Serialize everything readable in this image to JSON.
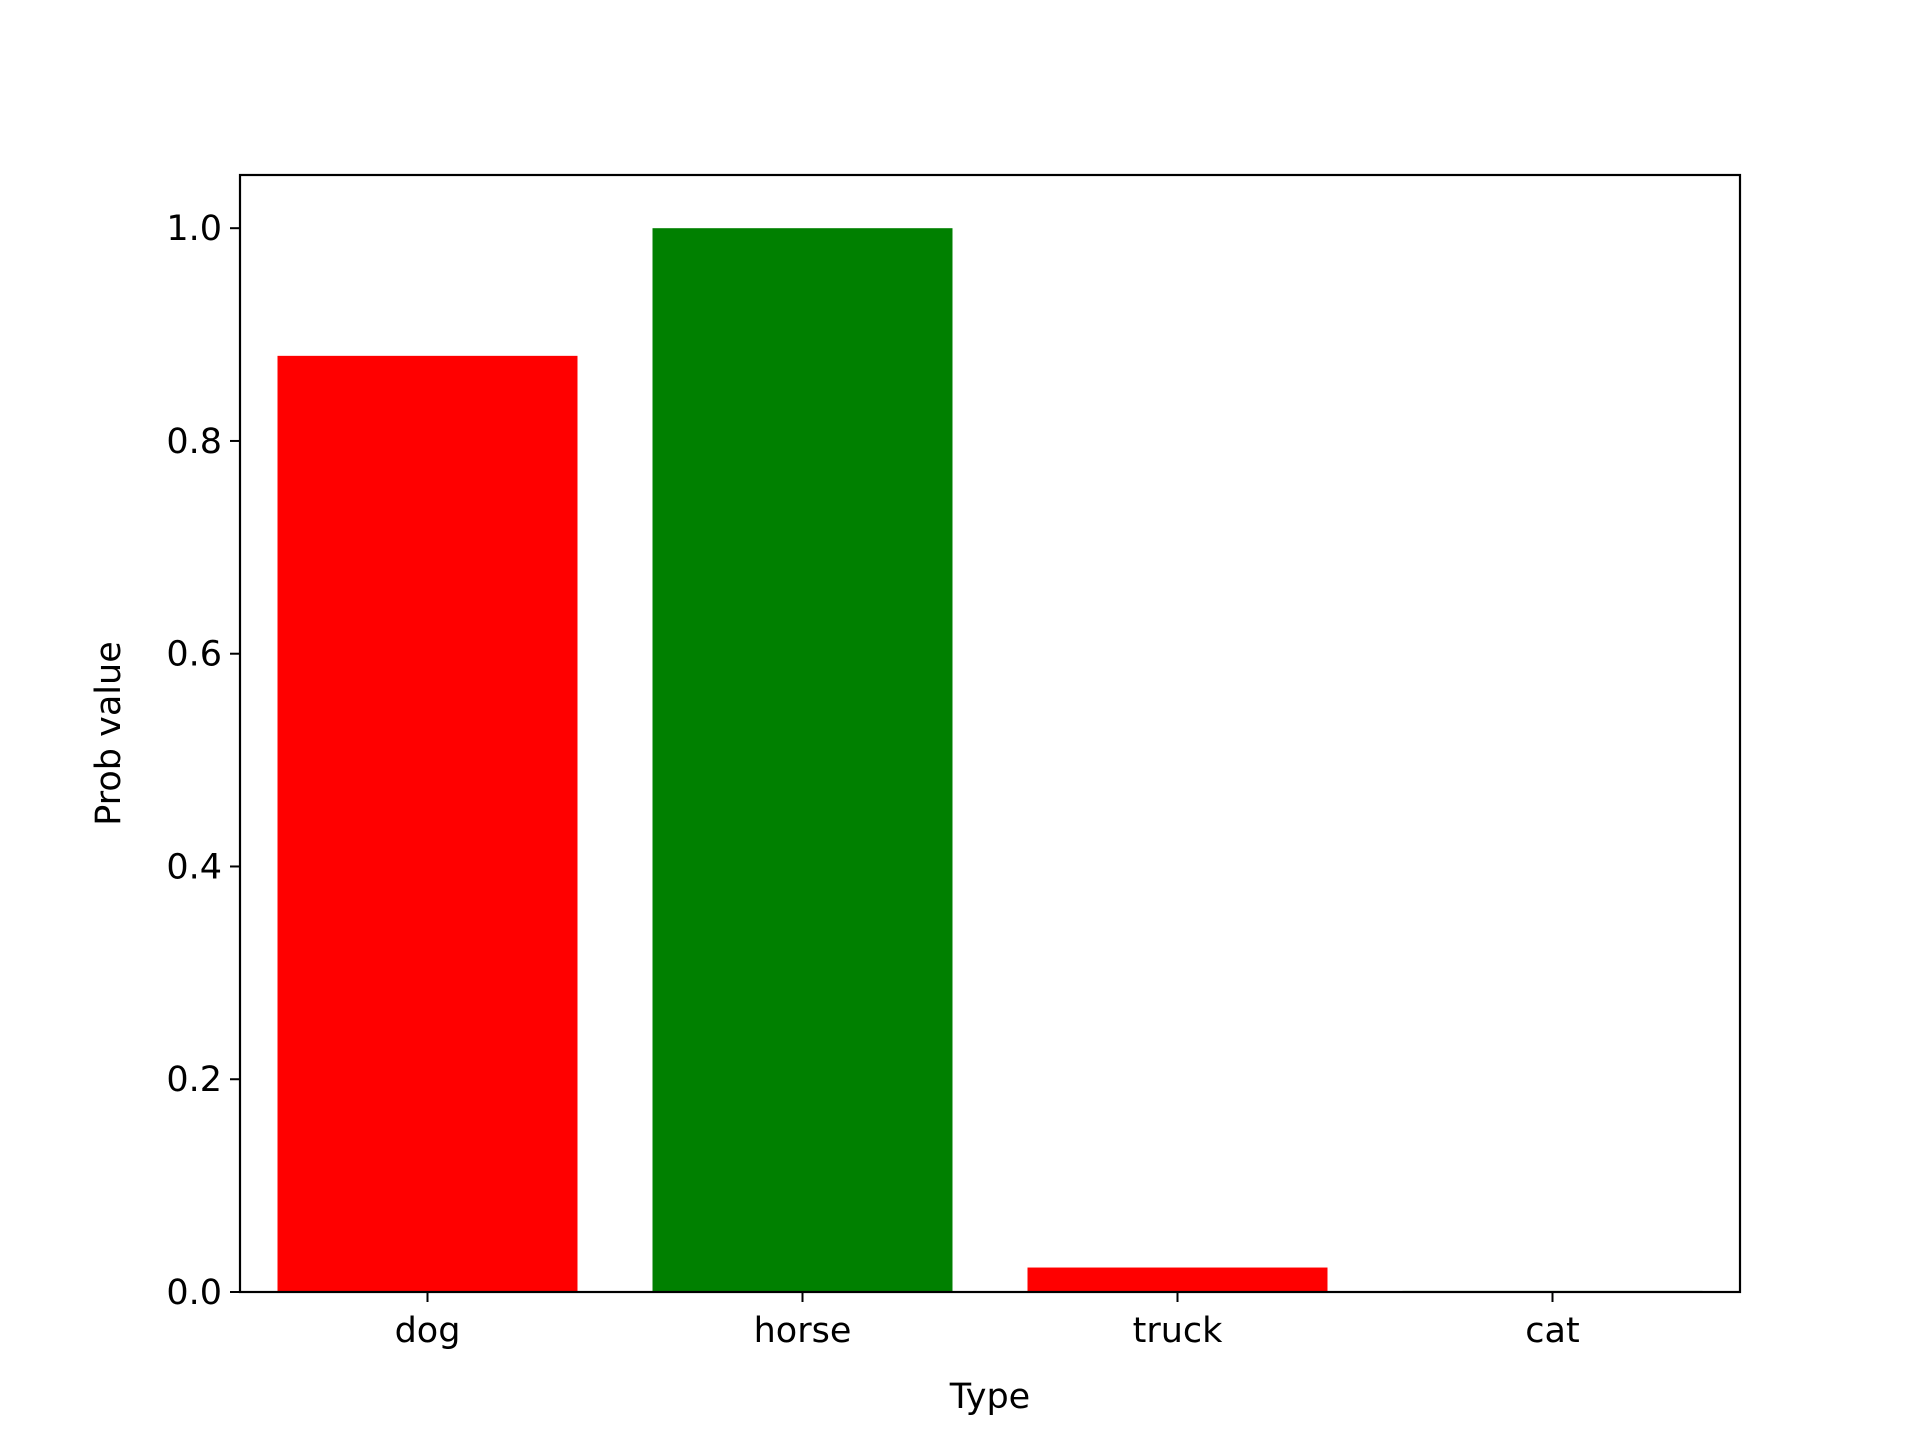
{
  "chart_data": {
    "type": "bar",
    "title": "",
    "xlabel": "Type",
    "ylabel": "Prob value",
    "categories": [
      "dog",
      "horse",
      "truck",
      "cat"
    ],
    "values": [
      0.88,
      1.0,
      0.023,
      0.001
    ],
    "bar_colors": [
      "#ff0000",
      "#008000",
      "#ff0000",
      "#008000"
    ],
    "ylim": [
      0,
      1.05
    ],
    "yticks": [
      0.0,
      0.2,
      0.4,
      0.6,
      0.8,
      1.0
    ],
    "ytick_labels": [
      "0.0",
      "0.2",
      "0.4",
      "0.6",
      "0.8",
      "1.0"
    ],
    "grid": false,
    "legend": "none"
  }
}
